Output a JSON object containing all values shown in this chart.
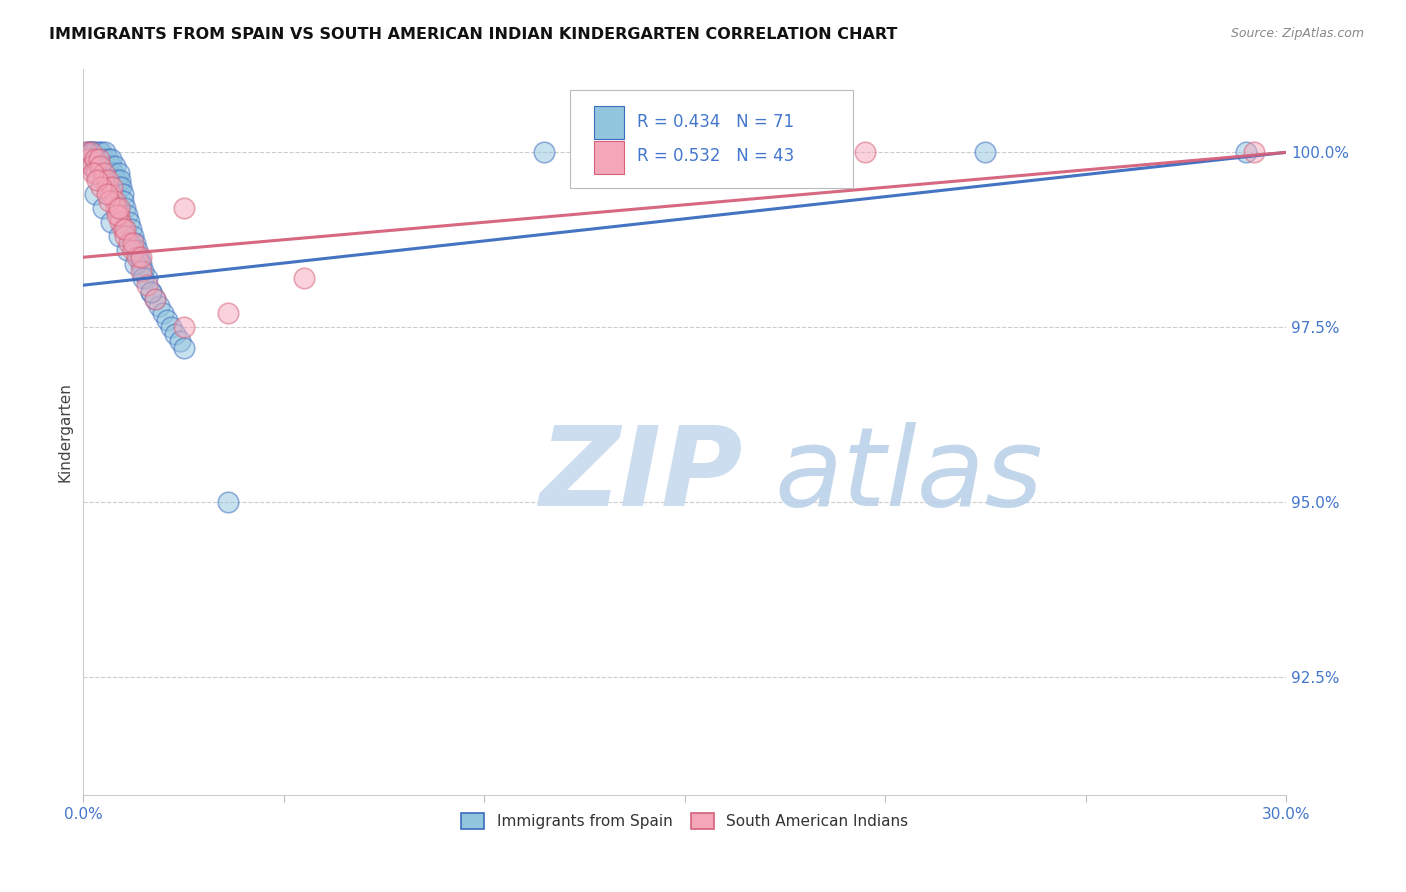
{
  "title": "IMMIGRANTS FROM SPAIN VS SOUTH AMERICAN INDIAN KINDERGARTEN CORRELATION CHART",
  "source": "Source: ZipAtlas.com",
  "ylabel": "Kindergarten",
  "yticks": [
    "92.5%",
    "95.0%",
    "97.5%",
    "100.0%"
  ],
  "ytick_vals": [
    92.5,
    95.0,
    97.5,
    100.0
  ],
  "xlim": [
    0.0,
    30.0
  ],
  "ylim": [
    90.8,
    101.2
  ],
  "legend_label1": "Immigrants from Spain",
  "legend_label2": "South American Indians",
  "R1": 0.434,
  "N1": 71,
  "R2": 0.532,
  "N2": 43,
  "color_blue": "#92c5de",
  "color_pink": "#f4a7b9",
  "color_blue_line": "#3a6bbf",
  "color_pink_line": "#d4607a",
  "axis_color": "#4477cc",
  "watermark_zip_color": "#ccddef",
  "watermark_atlas_color": "#b8cfe8",
  "background_color": "#ffffff",
  "title_fontsize": 11.5,
  "spain_x": [
    0.08,
    0.1,
    0.12,
    0.15,
    0.18,
    0.2,
    0.22,
    0.25,
    0.28,
    0.3,
    0.32,
    0.35,
    0.38,
    0.4,
    0.42,
    0.45,
    0.48,
    0.5,
    0.52,
    0.55,
    0.58,
    0.6,
    0.62,
    0.65,
    0.68,
    0.7,
    0.72,
    0.75,
    0.78,
    0.8,
    0.82,
    0.85,
    0.88,
    0.9,
    0.92,
    0.95,
    0.98,
    1.0,
    1.05,
    1.1,
    1.15,
    1.2,
    1.25,
    1.3,
    1.35,
    1.4,
    1.45,
    1.5,
    1.6,
    1.7,
    1.8,
    1.9,
    2.0,
    2.1,
    2.2,
    2.3,
    2.4,
    2.5,
    0.3,
    0.5,
    0.7,
    0.9,
    1.1,
    1.3,
    1.5,
    1.7,
    3.6,
    11.5,
    16.5,
    22.5,
    29.0
  ],
  "spain_y": [
    99.9,
    100.0,
    100.0,
    99.9,
    100.0,
    100.0,
    99.8,
    100.0,
    99.9,
    100.0,
    99.7,
    99.9,
    100.0,
    99.8,
    99.9,
    100.0,
    99.7,
    99.8,
    99.9,
    100.0,
    99.6,
    99.8,
    99.9,
    99.7,
    99.8,
    99.9,
    99.6,
    99.7,
    99.8,
    99.6,
    99.5,
    99.6,
    99.7,
    99.5,
    99.6,
    99.5,
    99.4,
    99.3,
    99.2,
    99.1,
    99.0,
    98.9,
    98.8,
    98.7,
    98.6,
    98.5,
    98.4,
    98.3,
    98.2,
    98.0,
    97.9,
    97.8,
    97.7,
    97.6,
    97.5,
    97.4,
    97.3,
    97.2,
    99.4,
    99.2,
    99.0,
    98.8,
    98.6,
    98.4,
    98.2,
    98.0,
    95.0,
    100.0,
    100.0,
    100.0,
    100.0
  ],
  "india_x": [
    0.08,
    0.12,
    0.18,
    0.22,
    0.28,
    0.32,
    0.38,
    0.42,
    0.48,
    0.52,
    0.58,
    0.62,
    0.68,
    0.72,
    0.78,
    0.82,
    0.88,
    0.92,
    0.98,
    1.05,
    1.15,
    1.25,
    1.35,
    1.45,
    1.6,
    1.8,
    0.25,
    0.45,
    0.65,
    0.85,
    1.05,
    1.25,
    1.45,
    2.5,
    3.6,
    5.5,
    13.0,
    19.5,
    29.2,
    2.5,
    0.35,
    0.6,
    0.9
  ],
  "india_y": [
    100.0,
    99.9,
    100.0,
    99.8,
    99.9,
    99.7,
    99.9,
    99.8,
    99.6,
    99.7,
    99.5,
    99.6,
    99.4,
    99.5,
    99.3,
    99.2,
    99.1,
    99.0,
    98.9,
    98.8,
    98.7,
    98.6,
    98.5,
    98.3,
    98.1,
    97.9,
    99.7,
    99.5,
    99.3,
    99.1,
    98.9,
    98.7,
    98.5,
    99.2,
    97.7,
    98.2,
    100.0,
    100.0,
    100.0,
    97.5,
    99.6,
    99.4,
    99.2
  ],
  "line1_x0": 0.0,
  "line1_y0": 98.1,
  "line1_x1": 30.0,
  "line1_y1": 100.0,
  "line2_x0": 0.0,
  "line2_y0": 98.5,
  "line2_x1": 30.0,
  "line2_y1": 100.0
}
